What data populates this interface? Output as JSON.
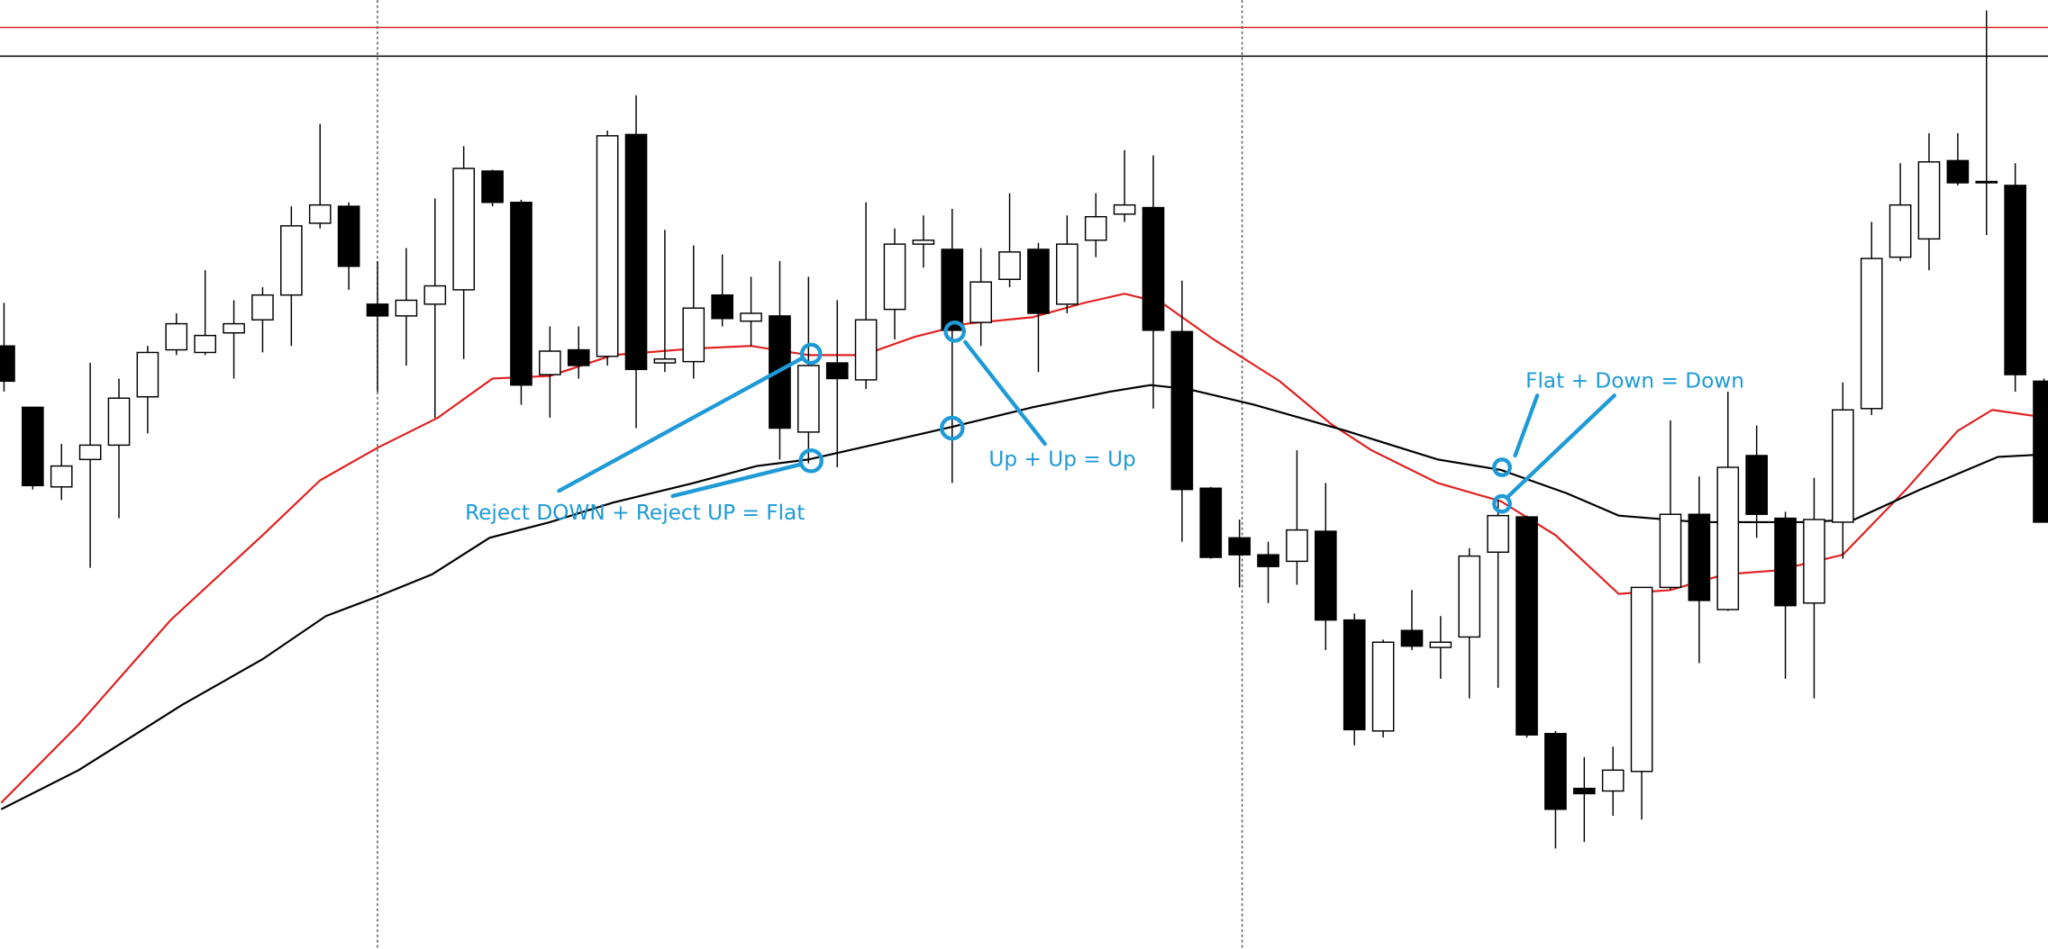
{
  "chart_data": {
    "type": "candlestick",
    "xlim": [
      -0.14,
      71.14
    ],
    "ylim": [
      0,
      727
    ],
    "levels": [
      {
        "value": 706,
        "color": "#e02020"
      },
      {
        "value": 684,
        "color": "#000000"
      }
    ],
    "candles": {
      "open": [
        462,
        415,
        354,
        375,
        386,
        423,
        459,
        457,
        472,
        482,
        501,
        556,
        569,
        494,
        485,
        494,
        505,
        596,
        572,
        440,
        459,
        454,
        624,
        449,
        450,
        501,
        481,
        485,
        396,
        449,
        436,
        490,
        540,
        536,
        480,
        513,
        536,
        494,
        543,
        563,
        568,
        473,
        353,
        315,
        302,
        297,
        320,
        252,
        167,
        244,
        231,
        239,
        304,
        331,
        165,
        123,
        121,
        136,
        277,
        333,
        260,
        378,
        330,
        265,
        327,
        414,
        530,
        544,
        604,
        588,
        585,
        435
      ],
      "high": [
        495,
        415,
        387,
        449,
        437,
        462,
        487,
        520,
        497,
        507,
        569,
        632,
        572,
        527,
        537,
        575,
        615,
        597,
        574,
        477,
        477,
        627,
        654,
        551,
        539,
        532,
        515,
        527,
        515,
        497,
        572,
        552,
        562,
        567,
        537,
        579,
        541,
        562,
        579,
        612,
        608,
        512,
        354,
        329,
        312,
        382,
        357,
        257,
        237,
        275,
        255,
        307,
        344,
        332,
        167,
        147,
        155,
        277,
        405,
        362,
        427,
        401,
        335,
        361,
        434,
        557,
        602,
        625,
        625,
        719,
        602,
        437
      ],
      "low": [
        427,
        352,
        344,
        292,
        330,
        395,
        455,
        455,
        437,
        457,
        462,
        552,
        505,
        427,
        447,
        407,
        452,
        569,
        417,
        407,
        437,
        447,
        399,
        442,
        437,
        477,
        462,
        375,
        372,
        369,
        429,
        467,
        522,
        357,
        462,
        507,
        442,
        487,
        530,
        557,
        414,
        312,
        299,
        277,
        265,
        279,
        229,
        156,
        162,
        229,
        207,
        192,
        200,
        162,
        77,
        82,
        102,
        99,
        275,
        219,
        259,
        315,
        207,
        192,
        299,
        409,
        527,
        520,
        585,
        547,
        427,
        327
      ],
      "close": [
        435,
        355,
        370,
        386,
        422,
        457,
        479,
        470,
        479,
        501,
        554,
        570,
        523,
        485,
        497,
        508,
        598,
        572,
        432,
        458,
        447,
        623,
        444,
        452,
        491,
        483,
        487,
        399,
        447,
        437,
        482,
        540,
        543,
        474,
        511,
        534,
        487,
        540,
        561,
        570,
        474,
        352,
        300,
        302,
        293,
        321,
        252,
        168,
        235,
        232,
        235,
        301,
        332,
        164,
        107,
        119,
        137,
        277,
        333,
        267,
        369,
        333,
        263,
        329,
        413,
        529,
        570,
        603,
        587,
        587,
        440,
        327
      ],
      "up_color": "#ffffff",
      "down_color": "#000000"
    },
    "series": [
      {
        "color": "#e02020",
        "x": [
          -0.1,
          2.6,
          5.8,
          9.0,
          11.0,
          13.0,
          15.1,
          17.0,
          19.0,
          21.2,
          24.0,
          26.0,
          28.0,
          29.9,
          31.7,
          33.5,
          35.8,
          37.6,
          39.0,
          40.3,
          42.1,
          44.4,
          46.2,
          47.6,
          49.9,
          52.1,
          54.0,
          56.2,
          58.0,
          59.9,
          61.7,
          64.0,
          66.2,
          68.0,
          69.2,
          71.1
        ],
        "values": [
          112,
          172,
          252,
          317,
          359,
          384,
          407,
          437,
          439,
          455,
          460,
          462,
          455,
          455,
          469,
          479,
          484,
          495,
          502,
          495,
          467,
          435,
          402,
          382,
          357,
          343,
          317,
          272,
          275,
          287,
          290,
          302,
          352,
          397,
          413,
          407
        ]
      },
      {
        "color": "#000000",
        "x": [
          -0.1,
          2.6,
          6.2,
          9.0,
          11.2,
          13.0,
          14.9,
          16.9,
          19.0,
          21.2,
          24.0,
          26.2,
          28.0,
          30.8,
          33.0,
          35.8,
          38.5,
          39.9,
          41.2,
          43.5,
          46.7,
          49.9,
          52.1,
          54.4,
          56.2,
          59.0,
          62.6,
          64.4,
          66.7,
          69.4,
          71.1
        ],
        "values": [
          107,
          137,
          187,
          222,
          255,
          270,
          287,
          315,
          327,
          342,
          357,
          370,
          375,
          389,
          400,
          415,
          427,
          432,
          429,
          417,
          397,
          375,
          367,
          349,
          332,
          327,
          327,
          329,
          352,
          377,
          379
        ]
      }
    ],
    "annotations": [
      "Reject DOWN + Reject UP = Flat",
      "Up + Up = Up",
      "Flat + Down = Down"
    ]
  }
}
